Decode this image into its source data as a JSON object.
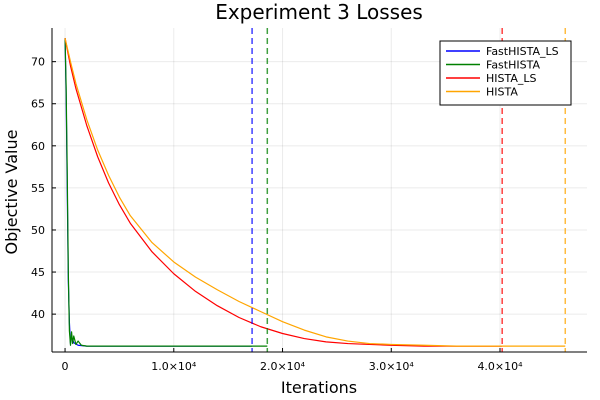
{
  "chart_data": {
    "type": "line",
    "title": "Experiment 3 Losses",
    "xlabel": "Iterations",
    "ylabel": "Objective Value",
    "xlim": [
      -1200,
      48000
    ],
    "ylim": [
      35.5,
      74
    ],
    "grid": true,
    "legend_position": "top-right",
    "x_ticks": [
      {
        "value": 0,
        "label": "0"
      },
      {
        "value": 10000,
        "label": "1.0×10⁴"
      },
      {
        "value": 20000,
        "label": "2.0×10⁴"
      },
      {
        "value": 30000,
        "label": "3.0×10⁴"
      },
      {
        "value": 40000,
        "label": "4.0×10⁴"
      }
    ],
    "y_ticks": [
      {
        "value": 40,
        "label": "40"
      },
      {
        "value": 45,
        "label": "45"
      },
      {
        "value": 50,
        "label": "50"
      },
      {
        "value": 55,
        "label": "55"
      },
      {
        "value": 60,
        "label": "60"
      },
      {
        "value": 65,
        "label": "65"
      },
      {
        "value": 70,
        "label": "70"
      }
    ],
    "series": [
      {
        "name": "FastHISTA_LS",
        "color": "#0000ff",
        "x": [
          0,
          100,
          200,
          300,
          400,
          500,
          600,
          800,
          1200,
          2000,
          5000,
          10000,
          17200
        ],
        "y": [
          72.8,
          66,
          55,
          44,
          39,
          36.5,
          37.3,
          36.6,
          36.3,
          36.2,
          36.2,
          36.2,
          36.2
        ],
        "stop_x": 17200
      },
      {
        "name": "FastHISTA",
        "color": "#008000",
        "x": [
          0,
          100,
          200,
          300,
          400,
          500,
          600,
          700,
          800,
          1000,
          1200,
          1500,
          2000,
          5000,
          10000,
          18600
        ],
        "y": [
          72.8,
          67,
          57,
          45,
          38,
          36.3,
          37.9,
          36.5,
          37.4,
          36.4,
          36.8,
          36.3,
          36.2,
          36.2,
          36.2,
          36.2
        ],
        "stop_x": 18600
      },
      {
        "name": "HISTA_LS",
        "color": "#ff0000",
        "x": [
          0,
          500,
          1000,
          2000,
          3000,
          4000,
          5000,
          6000,
          8000,
          10000,
          12000,
          14000,
          16000,
          18000,
          20000,
          22000,
          24000,
          26000,
          28000,
          30000,
          33000,
          36000,
          40200
        ],
        "y": [
          72.8,
          69.5,
          66.8,
          62.4,
          58.7,
          55.6,
          53.0,
          50.8,
          47.4,
          44.8,
          42.7,
          41.0,
          39.6,
          38.5,
          37.7,
          37.1,
          36.7,
          36.5,
          36.4,
          36.3,
          36.2,
          36.2,
          36.2
        ],
        "stop_x": 40200
      },
      {
        "name": "HISTA",
        "color": "#ffa500",
        "x": [
          0,
          500,
          1000,
          2000,
          3000,
          4000,
          5000,
          6000,
          8000,
          10000,
          12000,
          14000,
          16000,
          18000,
          20000,
          22000,
          24000,
          26000,
          28000,
          30000,
          33000,
          36000,
          40000,
          46000
        ],
        "y": [
          72.8,
          70.0,
          67.4,
          63.1,
          59.5,
          56.5,
          53.9,
          51.7,
          48.5,
          46.2,
          44.4,
          42.9,
          41.5,
          40.3,
          39.1,
          38.1,
          37.3,
          36.8,
          36.5,
          36.4,
          36.3,
          36.2,
          36.2,
          36.2
        ],
        "stop_x": 46000
      }
    ]
  }
}
